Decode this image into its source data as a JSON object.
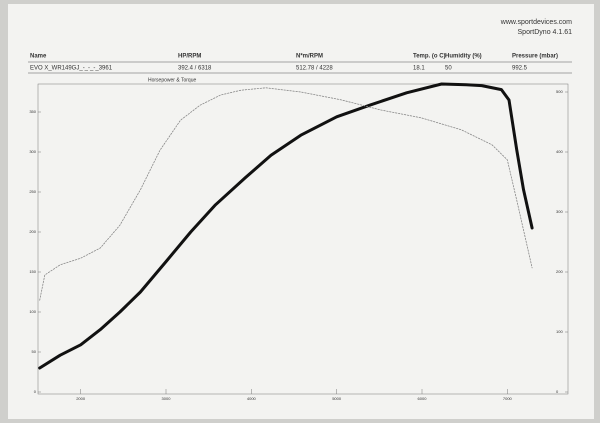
{
  "header": {
    "site": "www.sportdevices.com",
    "software": "SportDyno 4.1.61"
  },
  "table": {
    "columns": [
      "Name",
      "HP/RPM",
      "N*m/RPM",
      "Temp. (o C)",
      "Humidity (%)",
      "Pressure (mbar)"
    ],
    "rows": [
      [
        "EVO X_WR149GJ_-_-_-_3961",
        "392.4 / 6318",
        "512.78 / 4228",
        "18.1",
        "50",
        "992.5"
      ]
    ]
  },
  "chart_data": {
    "type": "line",
    "title": "Horsepower & Torque",
    "xlim": [
      1500,
      7500
    ],
    "xticks": [
      2000,
      3000,
      4000,
      5000,
      6000,
      7000
    ],
    "ylim": [
      0,
      390
    ],
    "yticks": [
      0,
      50,
      100,
      150,
      200,
      250,
      300,
      350
    ],
    "y2lim": [
      0,
      520
    ],
    "y2ticks": [
      0,
      100,
      200,
      300,
      400,
      500
    ],
    "grid": false,
    "series": [
      {
        "name": "Horsepower",
        "color": "#111111",
        "x": [
          1520,
          1760,
          2000,
          2230,
          2460,
          2700,
          3000,
          3290,
          3580,
          3930,
          4230,
          4580,
          5000,
          5400,
          5820,
          6230,
          6520,
          6700,
          6930,
          7020,
          7110,
          7190,
          7290
        ],
        "values": [
          30,
          46,
          59,
          78,
          100,
          125,
          163,
          200,
          234,
          268,
          296,
          321,
          344,
          359,
          374,
          385,
          384,
          383,
          378,
          365,
          303,
          253,
          205
        ]
      },
      {
        "name": "Torque",
        "color": "#888888",
        "axis": "y2",
        "x": [
          1520,
          1580,
          1760,
          2000,
          2230,
          2460,
          2700,
          2930,
          3170,
          3400,
          3640,
          3880,
          4170,
          4580,
          5050,
          5520,
          5990,
          6460,
          6820,
          7000,
          7110,
          7290
        ],
        "values": [
          153,
          195,
          212,
          223,
          240,
          278,
          337,
          403,
          453,
          478,
          495,
          503,
          507,
          500,
          487,
          470,
          457,
          437,
          412,
          387,
          320,
          207
        ]
      }
    ]
  }
}
